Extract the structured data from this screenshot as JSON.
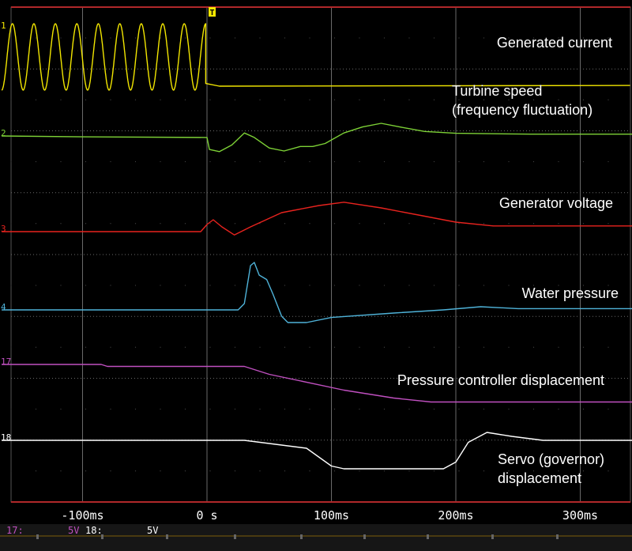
{
  "chart_data": {
    "type": "line",
    "title": "",
    "xlabel": "",
    "ylabel": "",
    "x_unit": "ms",
    "xlim": [
      -165,
      345
    ],
    "x_ticks": [
      {
        "value": -100,
        "label": "-100ms"
      },
      {
        "value": 0,
        "label": "0 s"
      },
      {
        "value": 100,
        "label": "100ms"
      },
      {
        "value": 200,
        "label": "200ms"
      },
      {
        "value": 300,
        "label": "300ms"
      }
    ],
    "trigger_marker": "T",
    "grid": true,
    "series": [
      {
        "name": "Generated current",
        "channel": "1",
        "color": "#f2e600",
        "kind": "sine",
        "sine_until": -1,
        "cycles": 9.5,
        "baseline": 0.5,
        "after": [
          [
            -1,
            0.1
          ],
          [
            10,
            0.06
          ],
          [
            340,
            0.07
          ]
        ]
      },
      {
        "name": "Turbine speed\n(frequency fluctuation)",
        "channel": "2",
        "color": "#7dd136",
        "points": [
          [
            -165,
            0.0
          ],
          [
            -100,
            -0.03
          ],
          [
            0,
            -0.05
          ],
          [
            2,
            -0.45
          ],
          [
            10,
            -0.52
          ],
          [
            20,
            -0.3
          ],
          [
            30,
            0.1
          ],
          [
            38,
            -0.05
          ],
          [
            50,
            -0.4
          ],
          [
            62,
            -0.5
          ],
          [
            75,
            -0.35
          ],
          [
            85,
            -0.35
          ],
          [
            95,
            -0.25
          ],
          [
            110,
            0.1
          ],
          [
            125,
            0.3
          ],
          [
            140,
            0.42
          ],
          [
            155,
            0.3
          ],
          [
            175,
            0.15
          ],
          [
            200,
            0.09
          ],
          [
            260,
            0.06
          ],
          [
            345,
            0.06
          ]
        ]
      },
      {
        "name": "Generator voltage",
        "channel": "3",
        "color": "#e8231e",
        "points": [
          [
            -165,
            0.0
          ],
          [
            -5,
            0.0
          ],
          [
            0,
            0.15
          ],
          [
            5,
            0.25
          ],
          [
            12,
            0.1
          ],
          [
            22,
            -0.07
          ],
          [
            35,
            0.1
          ],
          [
            60,
            0.4
          ],
          [
            90,
            0.55
          ],
          [
            110,
            0.62
          ],
          [
            140,
            0.5
          ],
          [
            170,
            0.35
          ],
          [
            200,
            0.2
          ],
          [
            230,
            0.12
          ],
          [
            270,
            0.12
          ],
          [
            345,
            0.12
          ]
        ]
      },
      {
        "name": "Water pressure",
        "channel": "4",
        "color": "#4fb3d9",
        "points": [
          [
            -165,
            0.0
          ],
          [
            25,
            0.0
          ],
          [
            30,
            0.1
          ],
          [
            35,
            0.7
          ],
          [
            38,
            0.75
          ],
          [
            42,
            0.55
          ],
          [
            48,
            0.48
          ],
          [
            53,
            0.25
          ],
          [
            60,
            -0.1
          ],
          [
            65,
            -0.2
          ],
          [
            80,
            -0.2
          ],
          [
            100,
            -0.12
          ],
          [
            150,
            -0.05
          ],
          [
            190,
            0.0
          ],
          [
            220,
            0.05
          ],
          [
            250,
            0.02
          ],
          [
            345,
            0.02
          ]
        ]
      },
      {
        "name": "Pressure controller displacement",
        "channel": "17",
        "color": "#c050c0",
        "points": [
          [
            -165,
            0.0
          ],
          [
            -85,
            0.0
          ],
          [
            -80,
            -0.05
          ],
          [
            30,
            -0.05
          ],
          [
            50,
            -0.25
          ],
          [
            110,
            -0.65
          ],
          [
            150,
            -0.85
          ],
          [
            180,
            -0.95
          ],
          [
            345,
            -0.95
          ]
        ]
      },
      {
        "name": "Servo (governor)\ndisplacement",
        "channel": "18",
        "color": "#ffffff",
        "points": [
          [
            -165,
            0.0
          ],
          [
            30,
            0.0
          ],
          [
            80,
            -0.2
          ],
          [
            100,
            -0.65
          ],
          [
            110,
            -0.72
          ],
          [
            190,
            -0.72
          ],
          [
            200,
            -0.55
          ],
          [
            210,
            -0.05
          ],
          [
            225,
            0.2
          ],
          [
            245,
            0.1
          ],
          [
            270,
            0.0
          ],
          [
            345,
            0.0
          ]
        ]
      }
    ]
  },
  "status_bar": [
    {
      "text": "17:",
      "color": "#c050c0"
    },
    {
      "text": "5V",
      "color": "#c050c0"
    },
    {
      "text": "18:",
      "color": "#ffffff"
    },
    {
      "text": "5V",
      "color": "#ffffff"
    }
  ]
}
